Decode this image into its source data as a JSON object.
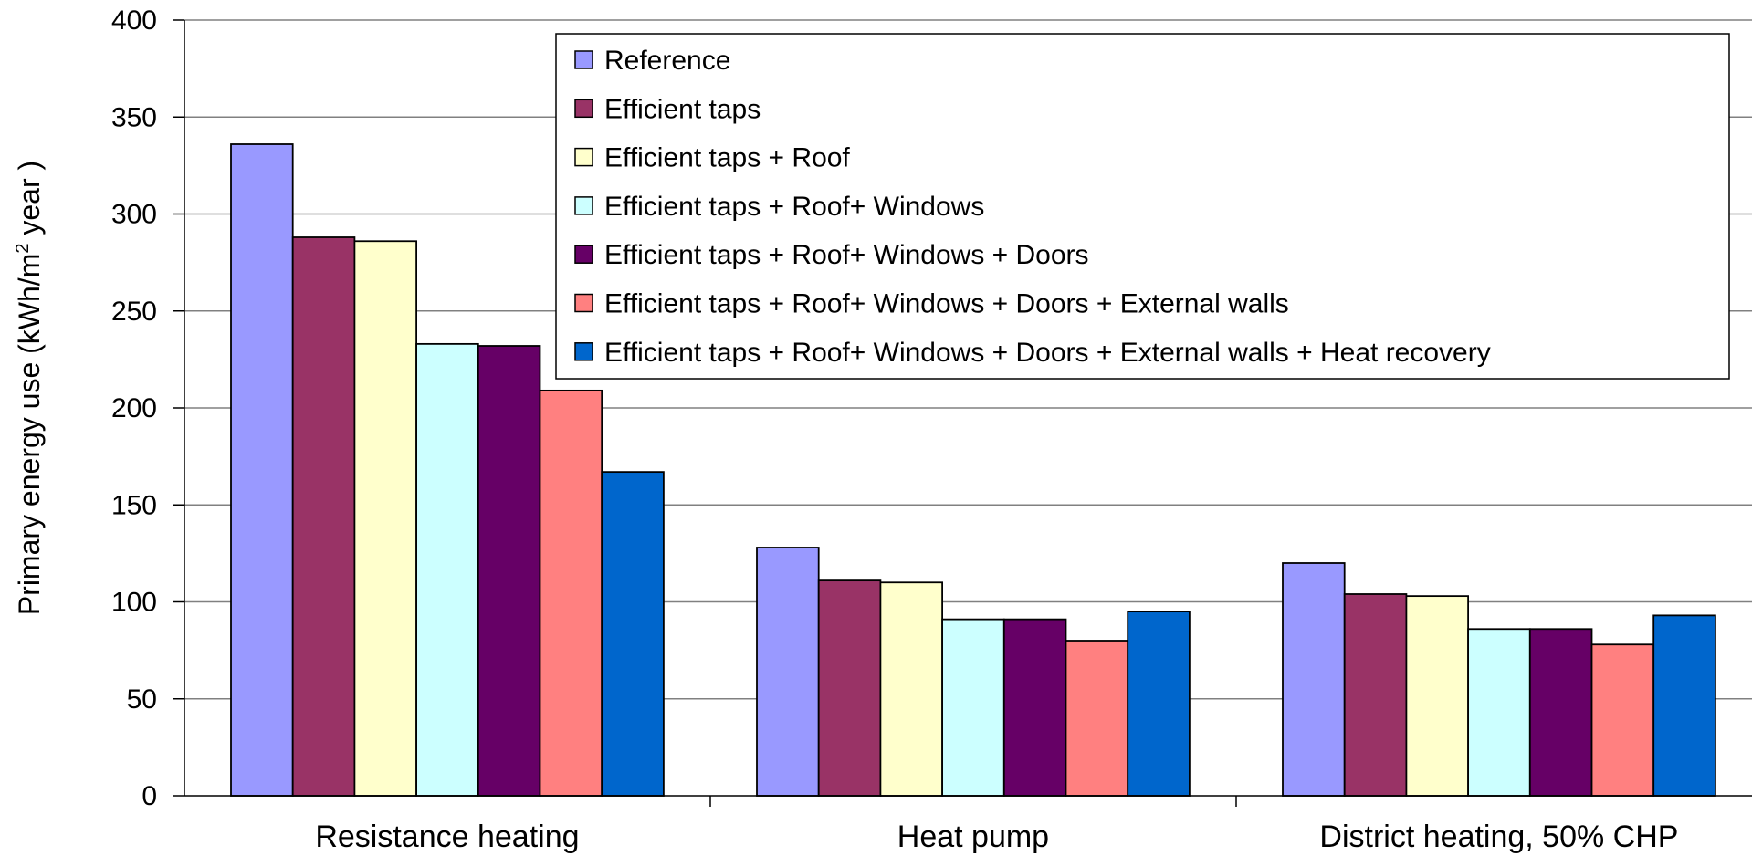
{
  "chart_data": {
    "type": "bar",
    "title": "",
    "xlabel": "",
    "ylabel": "Primary energy use (kWh/m",
    "ylabel_sup": "2",
    "ylabel_tail": " year )",
    "ylim": [
      0,
      400
    ],
    "yticks": [
      0,
      50,
      100,
      150,
      200,
      250,
      300,
      350,
      400
    ],
    "grid": true,
    "legend_position": "top-right",
    "categories": [
      "Resistance heating",
      "Heat pump",
      "District heating, 50% CHP"
    ],
    "series": [
      {
        "name": "Reference",
        "color": "#9999ff",
        "values": [
          336,
          128,
          120
        ]
      },
      {
        "name": "Efficient taps",
        "color": "#993366",
        "values": [
          288,
          111,
          104
        ]
      },
      {
        "name": "Efficient taps + Roof",
        "color": "#ffffcc",
        "values": [
          286,
          110,
          103
        ]
      },
      {
        "name": "Efficient taps + Roof+ Windows",
        "color": "#ccffff",
        "values": [
          233,
          91,
          86
        ]
      },
      {
        "name": "Efficient taps + Roof+ Windows + Doors",
        "color": "#660066",
        "values": [
          232,
          91,
          86
        ]
      },
      {
        "name": "Efficient taps + Roof+ Windows + Doors + External walls",
        "color": "#ff8080",
        "values": [
          209,
          80,
          78
        ]
      },
      {
        "name": "Efficient taps + Roof+ Windows + Doors + External walls + Heat recovery",
        "color": "#0066cc",
        "values": [
          167,
          95,
          93
        ]
      }
    ]
  }
}
